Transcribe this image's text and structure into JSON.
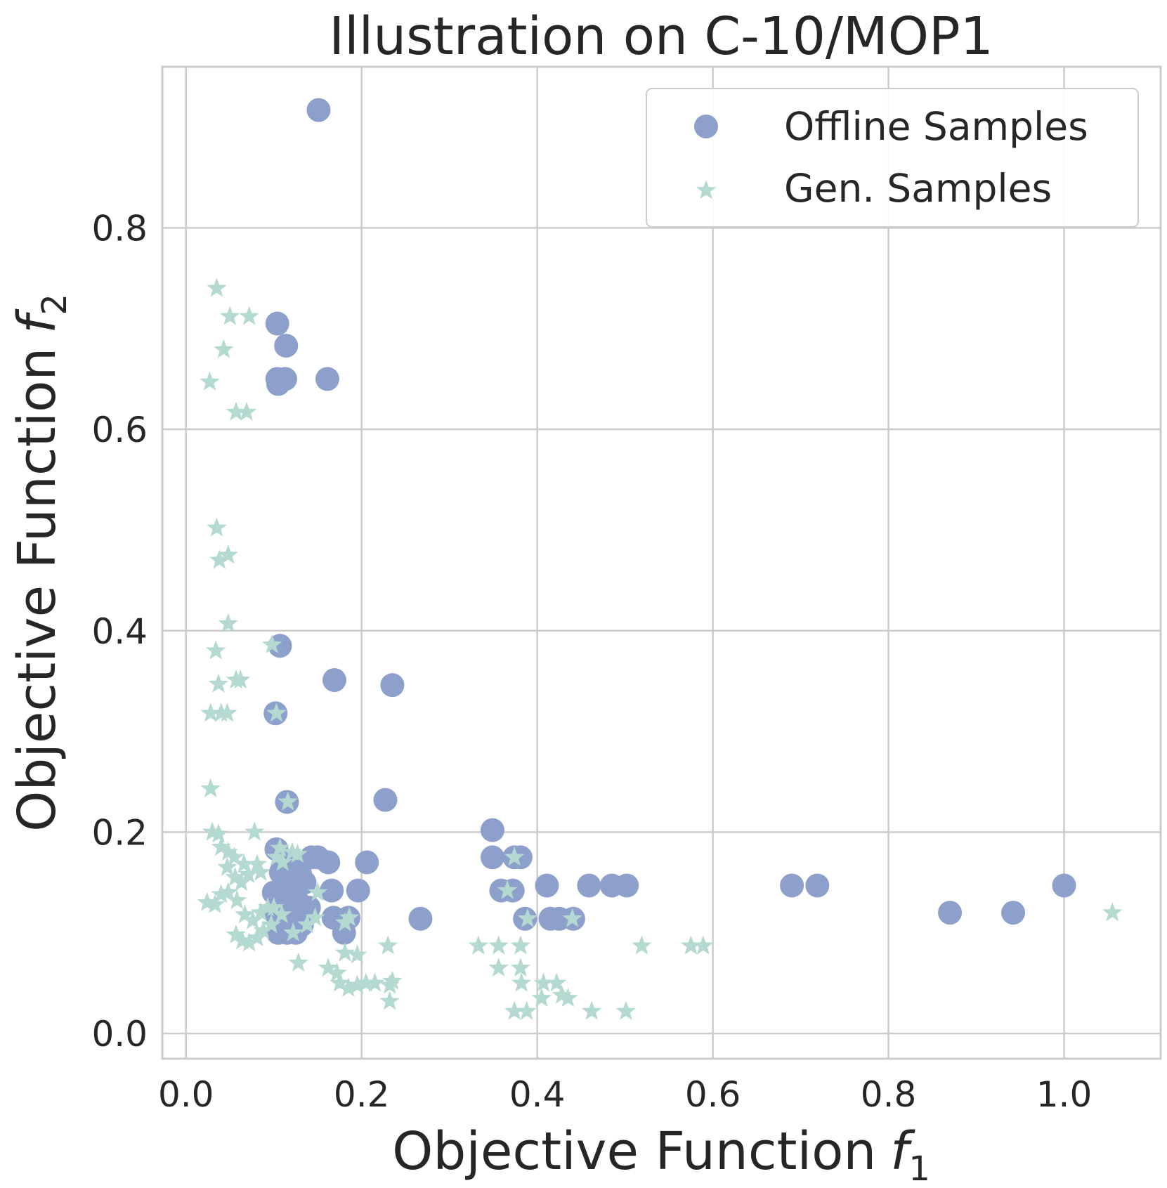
{
  "chart_data": {
    "type": "scatter",
    "title": "Illustration on C-10/MOP1",
    "xlabel": "Objective Function",
    "xlabel_symbol": "f",
    "xlabel_subscript": "1",
    "ylabel": "Objective Function",
    "ylabel_symbol": "f",
    "ylabel_subscript": "2",
    "xlim": [
      -0.027,
      1.11
    ],
    "ylim": [
      -0.025,
      0.96
    ],
    "xticks": [
      0.0,
      0.2,
      0.4,
      0.6,
      0.8,
      1.0
    ],
    "xtick_labels": [
      "0.0",
      "0.2",
      "0.4",
      "0.6",
      "0.8",
      "1.0"
    ],
    "yticks": [
      0.0,
      0.2,
      0.4,
      0.6,
      0.8
    ],
    "ytick_labels": [
      "0.0",
      "0.2",
      "0.4",
      "0.6",
      "0.8"
    ],
    "grid": true,
    "legend_position": "top-right",
    "series": [
      {
        "name": "Offline Samples",
        "marker": "circle",
        "color": "#8da0cb",
        "points": [
          [
            0.151,
            0.917
          ],
          [
            0.104,
            0.705
          ],
          [
            0.114,
            0.683
          ],
          [
            0.104,
            0.65
          ],
          [
            0.113,
            0.65
          ],
          [
            0.105,
            0.645
          ],
          [
            0.161,
            0.65
          ],
          [
            0.107,
            0.385
          ],
          [
            0.169,
            0.351
          ],
          [
            0.235,
            0.346
          ],
          [
            0.102,
            0.318
          ],
          [
            0.115,
            0.23
          ],
          [
            0.227,
            0.232
          ],
          [
            0.349,
            0.202
          ],
          [
            0.349,
            0.175
          ],
          [
            0.374,
            0.175
          ],
          [
            0.381,
            0.175
          ],
          [
            0.359,
            0.142
          ],
          [
            0.372,
            0.142
          ],
          [
            0.411,
            0.147
          ],
          [
            0.386,
            0.114
          ],
          [
            0.415,
            0.114
          ],
          [
            0.425,
            0.114
          ],
          [
            0.441,
            0.114
          ],
          [
            0.267,
            0.114
          ],
          [
            0.459,
            0.147
          ],
          [
            0.485,
            0.147
          ],
          [
            0.502,
            0.147
          ],
          [
            0.69,
            0.147
          ],
          [
            0.719,
            0.147
          ],
          [
            1.0,
            0.147
          ],
          [
            0.87,
            0.12
          ],
          [
            0.942,
            0.12
          ],
          [
            0.103,
            0.183
          ],
          [
            0.115,
            0.17
          ],
          [
            0.124,
            0.162
          ],
          [
            0.13,
            0.158
          ],
          [
            0.143,
            0.175
          ],
          [
            0.15,
            0.175
          ],
          [
            0.162,
            0.17
          ],
          [
            0.206,
            0.17
          ],
          [
            0.1,
            0.14
          ],
          [
            0.108,
            0.14
          ],
          [
            0.117,
            0.145
          ],
          [
            0.123,
            0.142
          ],
          [
            0.166,
            0.142
          ],
          [
            0.196,
            0.142
          ],
          [
            0.102,
            0.12
          ],
          [
            0.11,
            0.115
          ],
          [
            0.127,
            0.115
          ],
          [
            0.132,
            0.108
          ],
          [
            0.168,
            0.115
          ],
          [
            0.185,
            0.115
          ],
          [
            0.105,
            0.1
          ],
          [
            0.115,
            0.1
          ],
          [
            0.125,
            0.1
          ],
          [
            0.18,
            0.1
          ],
          [
            0.112,
            0.13
          ],
          [
            0.128,
            0.13
          ],
          [
            0.14,
            0.125
          ],
          [
            0.108,
            0.16
          ],
          [
            0.12,
            0.155
          ],
          [
            0.135,
            0.15
          ]
        ]
      },
      {
        "name": "Gen. Samples",
        "marker": "star",
        "color": "#b3d9d1",
        "points": [
          [
            0.035,
            0.74
          ],
          [
            0.05,
            0.712
          ],
          [
            0.072,
            0.712
          ],
          [
            0.043,
            0.679
          ],
          [
            0.027,
            0.647
          ],
          [
            0.057,
            0.617
          ],
          [
            0.069,
            0.617
          ],
          [
            0.035,
            0.502
          ],
          [
            0.038,
            0.47
          ],
          [
            0.048,
            0.475
          ],
          [
            0.048,
            0.407
          ],
          [
            0.034,
            0.38
          ],
          [
            0.098,
            0.386
          ],
          [
            0.037,
            0.347
          ],
          [
            0.057,
            0.351
          ],
          [
            0.062,
            0.351
          ],
          [
            0.028,
            0.318
          ],
          [
            0.04,
            0.318
          ],
          [
            0.047,
            0.318
          ],
          [
            0.103,
            0.318
          ],
          [
            0.028,
            0.243
          ],
          [
            0.116,
            0.23
          ],
          [
            0.03,
            0.2
          ],
          [
            0.037,
            0.198
          ],
          [
            0.078,
            0.2
          ],
          [
            0.04,
            0.185
          ],
          [
            0.048,
            0.18
          ],
          [
            0.055,
            0.175
          ],
          [
            0.066,
            0.168
          ],
          [
            0.081,
            0.168
          ],
          [
            0.103,
            0.175
          ],
          [
            0.107,
            0.184
          ],
          [
            0.121,
            0.18
          ],
          [
            0.047,
            0.165
          ],
          [
            0.056,
            0.155
          ],
          [
            0.063,
            0.15
          ],
          [
            0.071,
            0.158
          ],
          [
            0.085,
            0.16
          ],
          [
            0.11,
            0.17
          ],
          [
            0.127,
            0.178
          ],
          [
            0.024,
            0.13
          ],
          [
            0.033,
            0.128
          ],
          [
            0.04,
            0.138
          ],
          [
            0.048,
            0.14
          ],
          [
            0.058,
            0.132
          ],
          [
            0.067,
            0.118
          ],
          [
            0.076,
            0.112
          ],
          [
            0.085,
            0.12
          ],
          [
            0.093,
            0.125
          ],
          [
            0.1,
            0.125
          ],
          [
            0.109,
            0.118
          ],
          [
            0.15,
            0.14
          ],
          [
            0.057,
            0.098
          ],
          [
            0.064,
            0.092
          ],
          [
            0.072,
            0.09
          ],
          [
            0.081,
            0.095
          ],
          [
            0.088,
            0.102
          ],
          [
            0.097,
            0.108
          ],
          [
            0.122,
            0.1
          ],
          [
            0.138,
            0.108
          ],
          [
            0.147,
            0.115
          ],
          [
            0.181,
            0.11
          ],
          [
            0.186,
            0.115
          ],
          [
            0.128,
            0.07
          ],
          [
            0.162,
            0.065
          ],
          [
            0.172,
            0.06
          ],
          [
            0.181,
            0.08
          ],
          [
            0.195,
            0.078
          ],
          [
            0.175,
            0.05
          ],
          [
            0.185,
            0.045
          ],
          [
            0.195,
            0.048
          ],
          [
            0.205,
            0.05
          ],
          [
            0.215,
            0.05
          ],
          [
            0.232,
            0.048
          ],
          [
            0.235,
            0.052
          ],
          [
            0.232,
            0.032
          ],
          [
            0.23,
            0.087
          ],
          [
            0.333,
            0.087
          ],
          [
            0.356,
            0.087
          ],
          [
            0.381,
            0.087
          ],
          [
            0.356,
            0.065
          ],
          [
            0.381,
            0.065
          ],
          [
            0.382,
            0.05
          ],
          [
            0.407,
            0.05
          ],
          [
            0.422,
            0.05
          ],
          [
            0.428,
            0.038
          ],
          [
            0.435,
            0.035
          ],
          [
            0.405,
            0.035
          ],
          [
            0.374,
            0.022
          ],
          [
            0.388,
            0.022
          ],
          [
            0.462,
            0.022
          ],
          [
            0.501,
            0.022
          ],
          [
            0.519,
            0.087
          ],
          [
            0.575,
            0.087
          ],
          [
            0.589,
            0.087
          ],
          [
            1.055,
            0.12
          ],
          [
            0.374,
            0.175
          ],
          [
            0.366,
            0.142
          ],
          [
            0.389,
            0.114
          ],
          [
            0.44,
            0.114
          ]
        ]
      }
    ]
  }
}
